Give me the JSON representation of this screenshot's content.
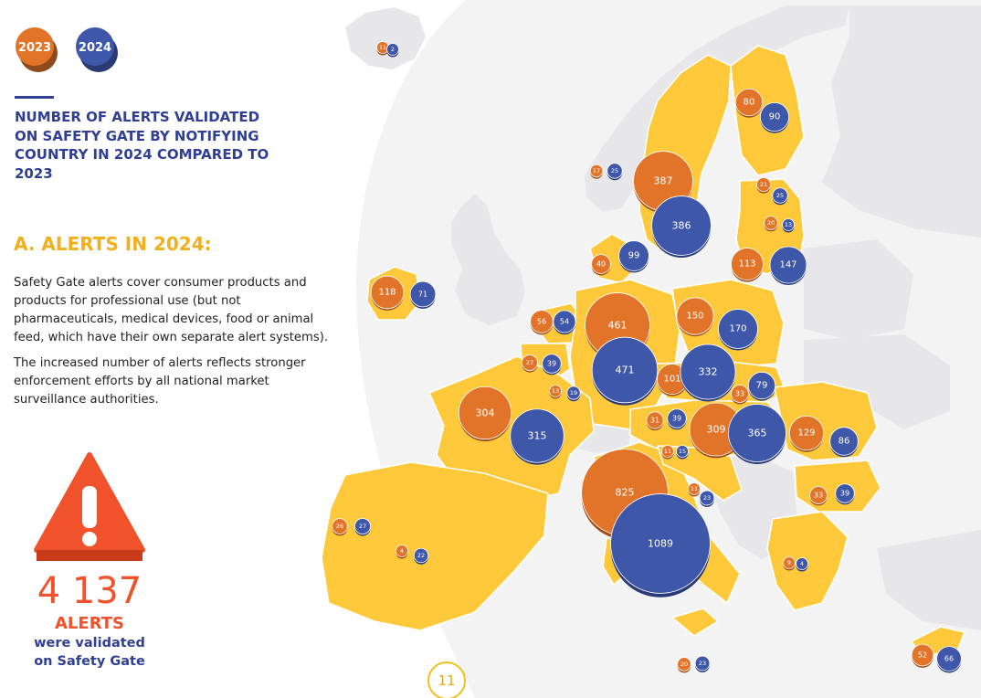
{
  "legend": {
    "items": [
      {
        "label": "2023",
        "color": "#e2742a"
      },
      {
        "label": "2024",
        "color": "#3f57a8"
      }
    ]
  },
  "headline": "NUMBER OF ALERTS VALIDATED ON SAFETY GATE BY NOTIFYING COUNTRY IN 2024 COMPARED TO 2023",
  "section_heading": "A. ALERTS IN 2024:",
  "paragraphs": [
    "Safety Gate alerts cover consumer products and products for professional use (but not pharmaceuticals, medical devices, food or animal feed, which have their own separate alert systems).",
    "The increased number of alerts reflects stronger enforcement efforts by all national market surveillance authorities."
  ],
  "total": {
    "number": "4 137",
    "label": "ALERTS",
    "caption_line1": "were validated",
    "caption_line2": "on Safety Gate"
  },
  "warning_icon": "warning-triangle-icon",
  "page_number": "11",
  "colors": {
    "alerts_2023": "#e2742a",
    "alerts_2024": "#3f57a8",
    "heading_blue": "#2f3f95",
    "heading_yellow": "#f2b01e",
    "total_red": "#f0532c",
    "eu_fill": "#fdc93a",
    "other_fill": "#e7e7e9"
  },
  "chart_data": {
    "type": "proportional-symbol-map",
    "title": "NUMBER OF ALERTS VALIDATED ON SAFETY GATE BY NOTIFYING COUNTRY IN 2024 COMPARED TO 2023",
    "series": [
      {
        "name": "2023",
        "color": "#e2742a"
      },
      {
        "name": "2024",
        "color": "#3f57a8"
      }
    ],
    "countries": [
      {
        "key": "iceland",
        "v2023": 11,
        "v2024": 2
      },
      {
        "key": "norway",
        "v2023": 17,
        "v2024": 25
      },
      {
        "key": "sweden",
        "v2023": 387,
        "v2024": 386
      },
      {
        "key": "finland",
        "v2023": 80,
        "v2024": 90
      },
      {
        "key": "estonia",
        "v2023": 21,
        "v2024": 25
      },
      {
        "key": "latvia",
        "v2023": 20,
        "v2024": 13
      },
      {
        "key": "lithuania",
        "v2023": 113,
        "v2024": 147
      },
      {
        "key": "denmark",
        "v2023": 40,
        "v2024": 99
      },
      {
        "key": "ireland",
        "v2023": 118,
        "v2024": 71
      },
      {
        "key": "netherlands",
        "v2023": 56,
        "v2024": 54
      },
      {
        "key": "belgium",
        "v2023": 27,
        "v2024": 39
      },
      {
        "key": "luxembourg",
        "v2023": 13,
        "v2024": 19
      },
      {
        "key": "germany",
        "v2023": 461,
        "v2024": 471
      },
      {
        "key": "poland",
        "v2023": 150,
        "v2024": 170
      },
      {
        "key": "czechia",
        "v2023": 101,
        "v2024": 332
      },
      {
        "key": "slovakia",
        "v2023": 33,
        "v2024": 79
      },
      {
        "key": "france",
        "v2023": 304,
        "v2024": 315
      },
      {
        "key": "austria",
        "v2023": 31,
        "v2024": 39
      },
      {
        "key": "hungary",
        "v2023": 309,
        "v2024": 365
      },
      {
        "key": "romania",
        "v2023": 129,
        "v2024": 86
      },
      {
        "key": "slovenia",
        "v2023": 11,
        "v2024": 15
      },
      {
        "key": "croatia",
        "v2023": 11,
        "v2024": 23
      },
      {
        "key": "bulgaria",
        "v2023": 33,
        "v2024": 39
      },
      {
        "key": "italy",
        "v2023": 825,
        "v2024": 1089
      },
      {
        "key": "portugal",
        "v2023": 26,
        "v2024": 27
      },
      {
        "key": "spain",
        "v2023": 4,
        "v2024": 22
      },
      {
        "key": "greece",
        "v2023": 9,
        "v2024": 4
      },
      {
        "key": "malta",
        "v2023": 20,
        "v2024": 23
      },
      {
        "key": "cyprus",
        "v2023": 52,
        "v2024": 66
      }
    ]
  }
}
